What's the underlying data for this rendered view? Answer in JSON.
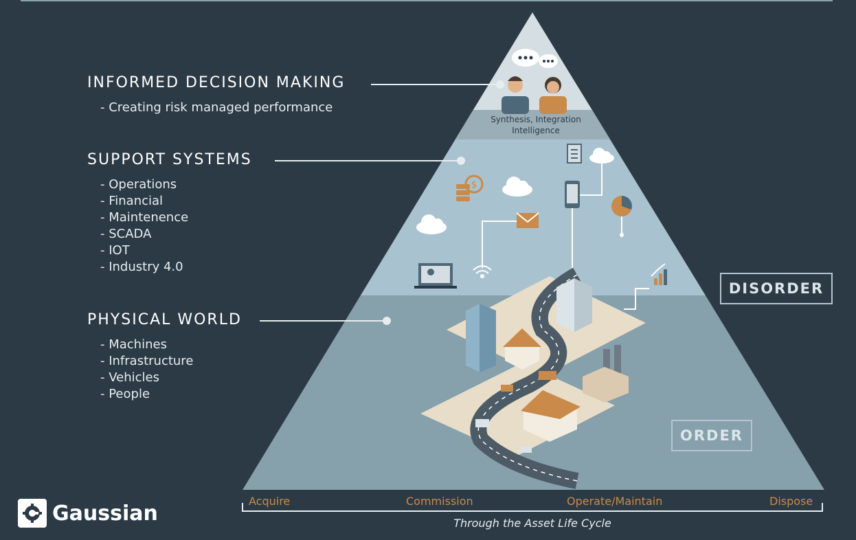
{
  "layers": {
    "decision": {
      "title": "INFORMED DECISION MAKING",
      "items": [
        "Creating risk managed performance"
      ]
    },
    "support": {
      "title": "SUPPORT SYSTEMS",
      "items": [
        "Operations",
        "Financial",
        "Maintenence",
        "SCADA",
        "IOT",
        "Industry 4.0"
      ]
    },
    "physical": {
      "title": "PHYSICAL WORLD",
      "items": [
        "Machines",
        "Infrastructure",
        "Vehicles",
        "People"
      ]
    }
  },
  "apex_label": {
    "line1": "Synthesis, Integration",
    "line2": "Intelligence"
  },
  "tags": {
    "disorder": "DISORDER",
    "order": "ORDER"
  },
  "lifecycle": {
    "stages": [
      "Acquire",
      "Commission",
      "Operate/Maintain",
      "Dispose"
    ],
    "caption": "Through the Asset Life Cycle"
  },
  "brand": {
    "name": "Gaussian"
  },
  "colors": {
    "background": "#2c3a45",
    "apex_band": "#d5dfe3",
    "support_band": "#a9c2cf",
    "physical_band": "#86a0ac",
    "accent_orange": "#c98a4a"
  },
  "icons": [
    "chat-bubble-icon",
    "person-icon",
    "document-icon",
    "cloud-icon",
    "coin-stack-icon",
    "smartphone-icon",
    "pie-chart-icon",
    "envelope-icon",
    "laptop-icon",
    "wifi-icon",
    "growth-chart-icon",
    "building-icon",
    "house-icon",
    "factory-icon",
    "truck-icon",
    "road"
  ]
}
